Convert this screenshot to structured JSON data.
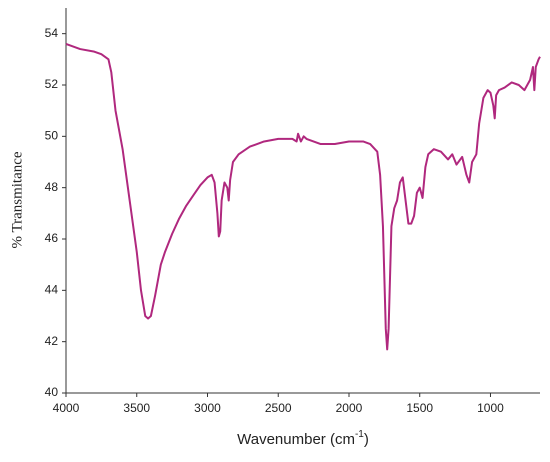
{
  "chart_data": {
    "type": "line",
    "x_label": [
      "Wavenumber (cm",
      "-1",
      ")"
    ],
    "y_label": "% Transmitance",
    "color": "#b0287e",
    "xlim": [
      4000,
      650
    ],
    "xticks": [
      4000,
      3500,
      3000,
      2500,
      2000,
      1500,
      1000
    ],
    "ylim": [
      40,
      55
    ],
    "yticks": [
      40,
      42,
      44,
      46,
      48,
      50,
      52,
      54
    ],
    "x": [
      4000,
      3900,
      3800,
      3750,
      3700,
      3680,
      3650,
      3600,
      3550,
      3500,
      3470,
      3440,
      3420,
      3400,
      3370,
      3330,
      3300,
      3250,
      3200,
      3150,
      3100,
      3050,
      3000,
      2970,
      2950,
      2930,
      2920,
      2910,
      2900,
      2880,
      2860,
      2850,
      2840,
      2820,
      2780,
      2700,
      2600,
      2500,
      2400,
      2370,
      2360,
      2340,
      2320,
      2300,
      2200,
      2100,
      2000,
      1900,
      1850,
      1800,
      1780,
      1760,
      1750,
      1740,
      1730,
      1720,
      1710,
      1700,
      1680,
      1660,
      1640,
      1620,
      1600,
      1580,
      1560,
      1540,
      1520,
      1500,
      1480,
      1460,
      1440,
      1400,
      1350,
      1300,
      1270,
      1240,
      1200,
      1170,
      1150,
      1130,
      1100,
      1080,
      1050,
      1020,
      1000,
      980,
      970,
      960,
      940,
      900,
      850,
      800,
      760,
      720,
      700,
      690,
      680,
      660,
      650
    ],
    "values": [
      53.6,
      53.4,
      53.3,
      53.2,
      53.0,
      52.5,
      51.0,
      49.5,
      47.5,
      45.5,
      44.0,
      43.0,
      42.9,
      43.0,
      43.8,
      45.0,
      45.5,
      46.2,
      46.8,
      47.3,
      47.7,
      48.1,
      48.4,
      48.5,
      48.2,
      47.0,
      46.1,
      46.3,
      47.5,
      48.2,
      48.0,
      47.5,
      48.3,
      49.0,
      49.3,
      49.6,
      49.8,
      49.9,
      49.9,
      49.8,
      50.1,
      49.8,
      50.0,
      49.9,
      49.7,
      49.7,
      49.8,
      49.8,
      49.7,
      49.4,
      48.5,
      46.5,
      44.5,
      42.5,
      41.7,
      42.5,
      44.5,
      46.5,
      47.2,
      47.5,
      48.2,
      48.4,
      47.5,
      46.6,
      46.6,
      46.9,
      47.8,
      48.0,
      47.6,
      48.8,
      49.3,
      49.5,
      49.4,
      49.1,
      49.3,
      48.9,
      49.2,
      48.5,
      48.2,
      49.0,
      49.3,
      50.5,
      51.5,
      51.8,
      51.7,
      51.2,
      50.7,
      51.6,
      51.8,
      51.9,
      52.1,
      52.0,
      51.8,
      52.2,
      52.7,
      51.8,
      52.7,
      53.0,
      53.1
    ]
  }
}
